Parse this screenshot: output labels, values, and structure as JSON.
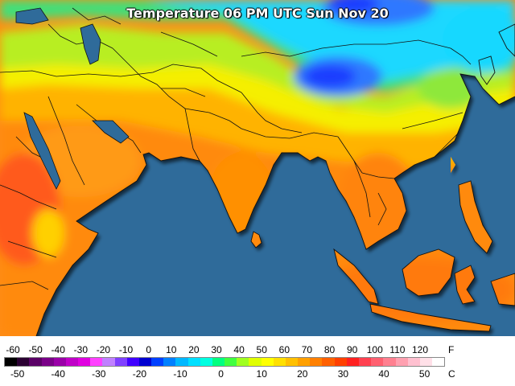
{
  "map": {
    "title": "Temperature 06 PM UTC Sun Nov 20",
    "ocean_color": "#2f6b9a",
    "palette": {
      "very_cold": "#1a3cff",
      "cold": "#2f78ff",
      "cyan": "#18d8ff",
      "teal": "#1ee8c8",
      "green": "#39e07a",
      "light_green": "#8ee83a",
      "yellow_green": "#c8f020",
      "yellow": "#f5f000",
      "light_orange": "#ffd000",
      "orange": "#ffa500",
      "dark_orange": "#ff7a10",
      "red_orange": "#ff5a1e"
    }
  },
  "legend": {
    "fahrenheit_label": "F",
    "celsius_label": "C",
    "fahrenheit_ticks": [
      "-60",
      "-50",
      "-40",
      "-30",
      "-20",
      "-10",
      "0",
      "10",
      "20",
      "30",
      "40",
      "50",
      "60",
      "70",
      "80",
      "90",
      "100",
      "110",
      "120"
    ],
    "celsius_ticks": [
      "-50",
      "-40",
      "-30",
      "-20",
      "-10",
      "0",
      "10",
      "20",
      "30",
      "40",
      "50"
    ],
    "colors": [
      "#000000",
      "#2a0032",
      "#5a0066",
      "#7a0088",
      "#9a00a8",
      "#c000c8",
      "#e000e0",
      "#ff40ff",
      "#c080ff",
      "#8040ff",
      "#4000ff",
      "#0000d0",
      "#0040ff",
      "#0080ff",
      "#00b8ff",
      "#00e0ff",
      "#00ffe0",
      "#00ff80",
      "#40ff40",
      "#a0ff20",
      "#e0ff00",
      "#ffff00",
      "#ffe000",
      "#ffc000",
      "#ffa000",
      "#ff8000",
      "#ff6000",
      "#ff4000",
      "#ff2020",
      "#ff4050",
      "#ff6070",
      "#ff8090",
      "#ffa0b0",
      "#ffc0d0",
      "#ffe0e8",
      "#ffffff"
    ]
  }
}
